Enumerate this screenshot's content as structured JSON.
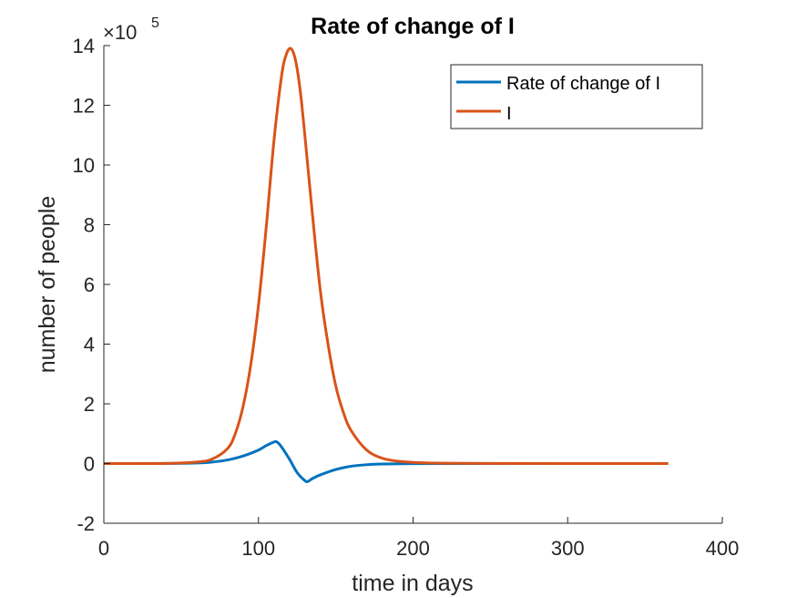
{
  "chart_data": {
    "type": "line",
    "title": "Rate of change of I",
    "xlabel": "time in days",
    "ylabel": "number of people",
    "xlim": [
      0,
      400
    ],
    "ylim": [
      -2,
      14
    ],
    "y_multiplier_label": "×10",
    "y_multiplier_exponent": "5",
    "x_ticks": [
      "0",
      "100",
      "200",
      "300",
      "400"
    ],
    "y_ticks": [
      "-2",
      "0",
      "2",
      "4",
      "6",
      "8",
      "10",
      "12",
      "14"
    ],
    "grid": false,
    "legend_position": "top-right",
    "series": [
      {
        "name": "Rate of change of I",
        "color": "#0072BD",
        "x": [
          0,
          40,
          60,
          70,
          80,
          90,
          100,
          105,
          110,
          112,
          115,
          120,
          125,
          130,
          132,
          135,
          140,
          150,
          160,
          170,
          180,
          200,
          250,
          300,
          365
        ],
        "y": [
          0,
          0.002,
          0.02,
          0.05,
          0.12,
          0.25,
          0.45,
          0.6,
          0.72,
          0.72,
          0.55,
          0.15,
          -0.3,
          -0.57,
          -0.6,
          -0.5,
          -0.38,
          -0.2,
          -0.09,
          -0.04,
          -0.015,
          -0.003,
          0,
          0,
          0
        ]
      },
      {
        "name": "I",
        "color": "#D95319",
        "x": [
          0,
          40,
          60,
          70,
          80,
          85,
          90,
          95,
          100,
          105,
          110,
          115,
          118,
          121,
          124,
          127,
          130,
          135,
          140,
          145,
          150,
          155,
          160,
          170,
          180,
          190,
          200,
          220,
          250,
          300,
          365
        ],
        "y": [
          0,
          0.005,
          0.05,
          0.15,
          0.5,
          1.0,
          1.9,
          3.3,
          5.3,
          7.9,
          10.8,
          13.0,
          13.7,
          13.9,
          13.5,
          12.5,
          11.0,
          8.3,
          5.8,
          4.0,
          2.6,
          1.7,
          1.1,
          0.45,
          0.18,
          0.08,
          0.04,
          0.01,
          0.002,
          0,
          0
        ]
      }
    ]
  }
}
